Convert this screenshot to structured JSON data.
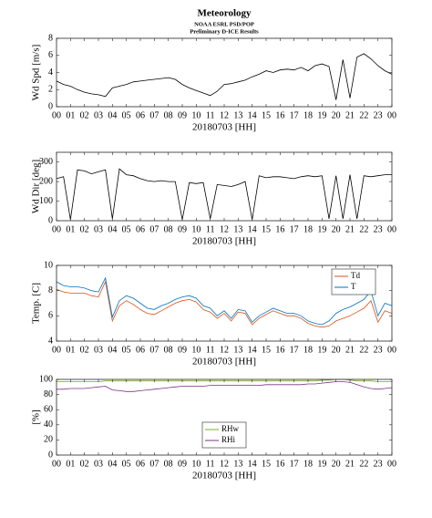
{
  "chart_data": [
    {
      "type": "line",
      "title": "Meteorology",
      "subtitle": [
        "NOAA ESRL PSD/POP",
        "Preliminary D-ICE Results"
      ],
      "ylabel": "Wd Spd [m/s]",
      "xlabel": "20180703 [HH]",
      "color": "#000000",
      "x": [
        0,
        0.5,
        1,
        1.5,
        2,
        2.5,
        3,
        3.5,
        4,
        4.5,
        5,
        5.5,
        6,
        6.5,
        7,
        7.5,
        8,
        8.5,
        9,
        9.5,
        10,
        10.5,
        11,
        11.5,
        12,
        12.5,
        13,
        13.5,
        14,
        14.5,
        15,
        15.5,
        16,
        16.5,
        17,
        17.5,
        18,
        18.5,
        19,
        19.5,
        20,
        20.5,
        21,
        21.5,
        22,
        22.5,
        23,
        23.5,
        24
      ],
      "values": [
        3,
        2.6,
        2.4,
        2.0,
        1.7,
        1.5,
        1.4,
        1.2,
        2.2,
        2.4,
        2.6,
        2.9,
        3.0,
        3.1,
        3.2,
        3.3,
        3.4,
        3.2,
        2.6,
        2.2,
        1.9,
        1.6,
        1.3,
        1.8,
        2.6,
        2.7,
        2.9,
        3.1,
        3.5,
        3.8,
        4.2,
        4.0,
        4.3,
        4.4,
        4.3,
        4.6,
        4.2,
        4.8,
        5.0,
        4.7,
        0.8,
        5.5,
        1.0,
        5.8,
        6.2,
        5.6,
        4.8,
        4.2,
        3.8
      ],
      "xlim": [
        0,
        24
      ],
      "xticks": [
        {
          "value": 0,
          "label": "00"
        },
        {
          "value": 1,
          "label": "01"
        },
        {
          "value": 2,
          "label": "02"
        },
        {
          "value": 3,
          "label": "03"
        },
        {
          "value": 4,
          "label": "04"
        },
        {
          "value": 5,
          "label": "05"
        },
        {
          "value": 6,
          "label": "06"
        },
        {
          "value": 7,
          "label": "07"
        },
        {
          "value": 8,
          "label": "08"
        },
        {
          "value": 9,
          "label": "09"
        },
        {
          "value": 10,
          "label": "10"
        },
        {
          "value": 11,
          "label": "11"
        },
        {
          "value": 12,
          "label": "12"
        },
        {
          "value": 13,
          "label": "13"
        },
        {
          "value": 14,
          "label": "14"
        },
        {
          "value": 15,
          "label": "15"
        },
        {
          "value": 16,
          "label": "16"
        },
        {
          "value": 17,
          "label": "17"
        },
        {
          "value": 18,
          "label": "18"
        },
        {
          "value": 19,
          "label": "19"
        },
        {
          "value": 20,
          "label": "20"
        },
        {
          "value": 21,
          "label": "21"
        },
        {
          "value": 22,
          "label": "22"
        },
        {
          "value": 23,
          "label": "23"
        },
        {
          "value": 24,
          "label": "00"
        }
      ],
      "ylim": [
        0,
        8
      ],
      "yticks": [
        0,
        2,
        4,
        6,
        8
      ]
    },
    {
      "type": "line",
      "ylabel": "Wd Dir [deg]",
      "xlabel": "20180703 [HH]",
      "color": "#000000",
      "x": [
        0,
        0.5,
        1,
        1.5,
        2,
        2.5,
        3,
        3.5,
        4,
        4.5,
        5,
        5.5,
        6,
        6.5,
        7,
        7.5,
        8,
        8.5,
        9,
        9.5,
        10,
        10.5,
        11,
        11.5,
        12,
        12.5,
        13,
        13.5,
        14,
        14.5,
        15,
        15.5,
        16,
        16.5,
        17,
        17.5,
        18,
        18.5,
        19,
        19.5,
        20,
        20.5,
        21,
        21.5,
        22,
        22.5,
        23,
        23.5,
        24
      ],
      "values": [
        215,
        225,
        5,
        260,
        255,
        240,
        250,
        260,
        10,
        265,
        235,
        230,
        215,
        205,
        200,
        205,
        200,
        200,
        5,
        195,
        190,
        195,
        10,
        185,
        180,
        175,
        185,
        200,
        5,
        230,
        220,
        225,
        225,
        220,
        215,
        225,
        230,
        225,
        230,
        10,
        230,
        10,
        235,
        10,
        230,
        225,
        230,
        235,
        235
      ],
      "xlim": [
        0,
        24
      ],
      "xticks": [
        {
          "value": 0,
          "label": "00"
        },
        {
          "value": 1,
          "label": "01"
        },
        {
          "value": 2,
          "label": "02"
        },
        {
          "value": 3,
          "label": "03"
        },
        {
          "value": 4,
          "label": "04"
        },
        {
          "value": 5,
          "label": "05"
        },
        {
          "value": 6,
          "label": "06"
        },
        {
          "value": 7,
          "label": "07"
        },
        {
          "value": 8,
          "label": "08"
        },
        {
          "value": 9,
          "label": "09"
        },
        {
          "value": 10,
          "label": "10"
        },
        {
          "value": 11,
          "label": "11"
        },
        {
          "value": 12,
          "label": "12"
        },
        {
          "value": 13,
          "label": "13"
        },
        {
          "value": 14,
          "label": "14"
        },
        {
          "value": 15,
          "label": "15"
        },
        {
          "value": 16,
          "label": "16"
        },
        {
          "value": 17,
          "label": "17"
        },
        {
          "value": 18,
          "label": "18"
        },
        {
          "value": 19,
          "label": "19"
        },
        {
          "value": 20,
          "label": "20"
        },
        {
          "value": 21,
          "label": "21"
        },
        {
          "value": 22,
          "label": "22"
        },
        {
          "value": 23,
          "label": "23"
        },
        {
          "value": 24,
          "label": "00"
        }
      ],
      "ylim": [
        0,
        350
      ],
      "yticks": [
        0,
        100,
        200,
        300
      ]
    },
    {
      "type": "line",
      "ylabel": "Temp. [C]",
      "xlabel": "20180703 [HH]",
      "legend": "upper right",
      "x": [
        0,
        0.5,
        1,
        1.5,
        2,
        2.5,
        3,
        3.5,
        4,
        4.5,
        5,
        5.5,
        6,
        6.5,
        7,
        7.5,
        8,
        8.5,
        9,
        9.5,
        10,
        10.5,
        11,
        11.5,
        12,
        12.5,
        13,
        13.5,
        14,
        14.5,
        15,
        15.5,
        16,
        16.5,
        17,
        17.5,
        18,
        18.5,
        19,
        19.5,
        20,
        20.5,
        21,
        21.5,
        22,
        22.5,
        23,
        23.5,
        24
      ],
      "series": [
        {
          "name": "Td",
          "color": "#d95319",
          "values": [
            8.1,
            7.9,
            7.8,
            7.8,
            7.8,
            7.6,
            7.5,
            8.7,
            5.6,
            6.8,
            7.2,
            6.9,
            6.5,
            6.2,
            6.1,
            6.4,
            6.7,
            7.0,
            7.2,
            7.3,
            7.1,
            6.5,
            6.3,
            5.8,
            6.2,
            5.6,
            6.3,
            6.2,
            5.3,
            5.8,
            6.1,
            6.4,
            6.2,
            6.0,
            6.0,
            5.8,
            5.4,
            5.2,
            5.1,
            5.2,
            5.6,
            5.8,
            6.0,
            6.3,
            6.6,
            7.2,
            5.5,
            6.4,
            6.2
          ]
        },
        {
          "name": "T",
          "color": "#0072bd",
          "values": [
            8.7,
            8.4,
            8.3,
            8.3,
            8.2,
            8.0,
            7.9,
            9.0,
            5.9,
            7.2,
            7.6,
            7.4,
            7.0,
            6.6,
            6.5,
            6.8,
            7.0,
            7.3,
            7.5,
            7.6,
            7.4,
            6.8,
            6.6,
            6.0,
            6.4,
            5.8,
            6.5,
            6.4,
            5.5,
            6.0,
            6.3,
            6.6,
            6.4,
            6.2,
            6.2,
            6.0,
            5.6,
            5.4,
            5.3,
            5.6,
            6.2,
            6.5,
            6.7,
            7.0,
            7.3,
            8.0,
            6.0,
            7.0,
            6.8
          ]
        }
      ],
      "xlim": [
        0,
        24
      ],
      "xticks": [
        {
          "value": 0,
          "label": "00"
        },
        {
          "value": 1,
          "label": "01"
        },
        {
          "value": 2,
          "label": "02"
        },
        {
          "value": 3,
          "label": "03"
        },
        {
          "value": 4,
          "label": "04"
        },
        {
          "value": 5,
          "label": "05"
        },
        {
          "value": 6,
          "label": "06"
        },
        {
          "value": 7,
          "label": "07"
        },
        {
          "value": 8,
          "label": "08"
        },
        {
          "value": 9,
          "label": "09"
        },
        {
          "value": 10,
          "label": "10"
        },
        {
          "value": 11,
          "label": "11"
        },
        {
          "value": 12,
          "label": "12"
        },
        {
          "value": 13,
          "label": "13"
        },
        {
          "value": 14,
          "label": "14"
        },
        {
          "value": 15,
          "label": "15"
        },
        {
          "value": 16,
          "label": "16"
        },
        {
          "value": 17,
          "label": "17"
        },
        {
          "value": 18,
          "label": "18"
        },
        {
          "value": 19,
          "label": "19"
        },
        {
          "value": 20,
          "label": "20"
        },
        {
          "value": 21,
          "label": "21"
        },
        {
          "value": 22,
          "label": "22"
        },
        {
          "value": 23,
          "label": "23"
        },
        {
          "value": 24,
          "label": "00"
        }
      ],
      "ylim": [
        4,
        10
      ],
      "yticks": [
        4,
        6,
        8,
        10
      ]
    },
    {
      "type": "line",
      "ylabel": "[%]",
      "xlabel": "20180703 [HH]",
      "legend": "lower center",
      "x": [
        0,
        0.5,
        1,
        1.5,
        2,
        2.5,
        3,
        3.5,
        4,
        4.5,
        5,
        5.5,
        6,
        6.5,
        7,
        7.5,
        8,
        8.5,
        9,
        9.5,
        10,
        10.5,
        11,
        11.5,
        12,
        12.5,
        13,
        13.5,
        14,
        14.5,
        15,
        15.5,
        16,
        16.5,
        17,
        17.5,
        18,
        18.5,
        19,
        19.5,
        20,
        20.5,
        21,
        21.5,
        22,
        22.5,
        23,
        23.5,
        24
      ],
      "series": [
        {
          "name": "RHw",
          "color": "#77ac30",
          "values": [
            97,
            97,
            97,
            97,
            97,
            97,
            97,
            98,
            98,
            98,
            98,
            98,
            98,
            98,
            98,
            98,
            98,
            98,
            98,
            98,
            98,
            98,
            98,
            98,
            98,
            98,
            98,
            98,
            98,
            98,
            98,
            98,
            98,
            98,
            98,
            98,
            98,
            98,
            99,
            99,
            100,
            100,
            99,
            98,
            98,
            98,
            97,
            97,
            97
          ]
        },
        {
          "name": "RHi",
          "color": "#7e2f8e",
          "values": [
            87,
            87,
            88,
            88,
            88,
            89,
            90,
            91,
            86,
            85,
            84,
            84,
            85,
            86,
            87,
            88,
            89,
            90,
            91,
            91,
            91,
            91,
            92,
            92,
            92,
            92,
            92,
            92,
            92,
            92,
            93,
            93,
            93,
            93,
            93,
            93,
            94,
            94,
            95,
            96,
            97,
            97,
            96,
            93,
            90,
            88,
            87,
            88,
            89
          ]
        }
      ],
      "xlim": [
        0,
        24
      ],
      "xticks": [
        {
          "value": 0,
          "label": "00"
        },
        {
          "value": 1,
          "label": "01"
        },
        {
          "value": 2,
          "label": "02"
        },
        {
          "value": 3,
          "label": "03"
        },
        {
          "value": 4,
          "label": "04"
        },
        {
          "value": 5,
          "label": "05"
        },
        {
          "value": 6,
          "label": "06"
        },
        {
          "value": 7,
          "label": "07"
        },
        {
          "value": 8,
          "label": "08"
        },
        {
          "value": 9,
          "label": "09"
        },
        {
          "value": 10,
          "label": "10"
        },
        {
          "value": 11,
          "label": "11"
        },
        {
          "value": 12,
          "label": "12"
        },
        {
          "value": 13,
          "label": "13"
        },
        {
          "value": 14,
          "label": "14"
        },
        {
          "value": 15,
          "label": "15"
        },
        {
          "value": 16,
          "label": "16"
        },
        {
          "value": 17,
          "label": "17"
        },
        {
          "value": 18,
          "label": "18"
        },
        {
          "value": 19,
          "label": "19"
        },
        {
          "value": 20,
          "label": "20"
        },
        {
          "value": 21,
          "label": "21"
        },
        {
          "value": 22,
          "label": "22"
        },
        {
          "value": 23,
          "label": "23"
        },
        {
          "value": 24,
          "label": "00"
        }
      ],
      "ylim": [
        0,
        100
      ],
      "yticks": [
        0,
        20,
        40,
        60,
        80,
        100
      ]
    }
  ]
}
